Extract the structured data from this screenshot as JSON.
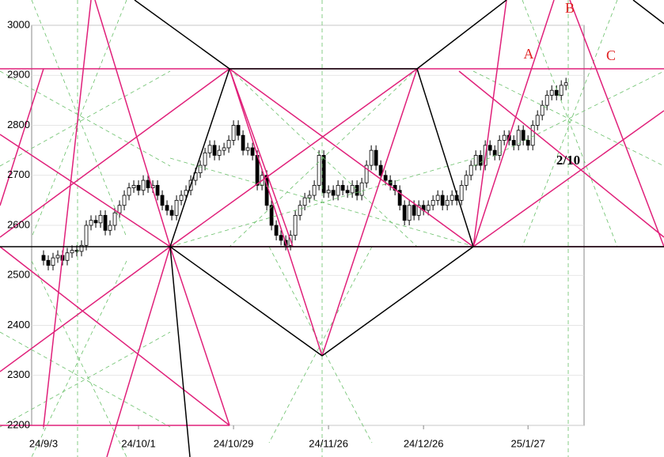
{
  "chart_data": {
    "type": "candlestick",
    "series": [
      {
        "name": "open",
        "values": [
          2540,
          2530,
          2520,
          2535,
          2540,
          2530,
          2545,
          2550,
          2548,
          2560,
          2600,
          2610,
          2605,
          2620,
          2590,
          2600,
          2625,
          2640,
          2660,
          2675,
          2680,
          2670,
          2690,
          2675,
          2680,
          2660,
          2640,
          2630,
          2620,
          2650,
          2660,
          2670,
          2690,
          2705,
          2720,
          2745,
          2760,
          2740,
          2750,
          2755,
          2770,
          2800,
          2780,
          2750,
          2755,
          2740,
          2680,
          2700,
          2640,
          2600,
          2580,
          2570,
          2560,
          2580,
          2620,
          2640,
          2655,
          2660,
          2680,
          2740,
          2665,
          2670,
          2660,
          2680,
          2670,
          2665,
          2680,
          2660,
          2685,
          2720,
          2750,
          2720,
          2700,
          2690,
          2680,
          2670,
          2640,
          2610,
          2640,
          2620,
          2640,
          2630,
          2640,
          2650,
          2660,
          2640,
          2650,
          2660,
          2650,
          2680,
          2700,
          2720,
          2740,
          2720,
          2760,
          2750,
          2740,
          2770,
          2780,
          2770,
          2760,
          2790,
          2770,
          2760,
          2800,
          2820,
          2840,
          2860,
          2870,
          2860,
          2880
        ]
      },
      {
        "name": "high",
        "values": [
          2550,
          2540,
          2545,
          2550,
          2550,
          2555,
          2560,
          2560,
          2570,
          2610,
          2620,
          2620,
          2630,
          2630,
          2610,
          2635,
          2650,
          2670,
          2685,
          2690,
          2690,
          2700,
          2700,
          2690,
          2690,
          2670,
          2650,
          2640,
          2660,
          2670,
          2680,
          2700,
          2715,
          2730,
          2755,
          2770,
          2770,
          2760,
          2765,
          2780,
          2810,
          2810,
          2790,
          2765,
          2765,
          2750,
          2710,
          2710,
          2650,
          2610,
          2590,
          2580,
          2590,
          2630,
          2650,
          2665,
          2670,
          2690,
          2750,
          2750,
          2680,
          2680,
          2690,
          2690,
          2680,
          2690,
          2690,
          2695,
          2730,
          2760,
          2760,
          2730,
          2710,
          2700,
          2690,
          2680,
          2650,
          2650,
          2650,
          2650,
          2650,
          2650,
          2660,
          2670,
          2670,
          2660,
          2670,
          2670,
          2690,
          2710,
          2730,
          2750,
          2750,
          2770,
          2770,
          2760,
          2780,
          2790,
          2790,
          2780,
          2800,
          2800,
          2780,
          2810,
          2830,
          2850,
          2870,
          2880,
          2880,
          2890,
          2895
        ]
      },
      {
        "name": "low",
        "values": [
          2520,
          2510,
          2510,
          2525,
          2520,
          2520,
          2535,
          2538,
          2538,
          2550,
          2590,
          2595,
          2595,
          2580,
          2580,
          2590,
          2615,
          2630,
          2650,
          2665,
          2660,
          2660,
          2665,
          2665,
          2650,
          2630,
          2620,
          2610,
          2610,
          2640,
          2650,
          2660,
          2680,
          2695,
          2710,
          2735,
          2730,
          2730,
          2740,
          2745,
          2760,
          2770,
          2740,
          2740,
          2730,
          2670,
          2670,
          2630,
          2590,
          2570,
          2560,
          2550,
          2550,
          2570,
          2610,
          2630,
          2645,
          2650,
          2670,
          2655,
          2655,
          2650,
          2650,
          2660,
          2655,
          2655,
          2650,
          2650,
          2675,
          2710,
          2710,
          2690,
          2680,
          2670,
          2660,
          2630,
          2600,
          2600,
          2610,
          2610,
          2620,
          2620,
          2630,
          2640,
          2630,
          2630,
          2640,
          2640,
          2640,
          2670,
          2690,
          2710,
          2710,
          2710,
          2740,
          2730,
          2730,
          2760,
          2760,
          2750,
          2750,
          2760,
          2750,
          2750,
          2790,
          2810,
          2830,
          2850,
          2850,
          2850,
          2870
        ]
      },
      {
        "name": "close",
        "values": [
          2530,
          2520,
          2535,
          2540,
          2530,
          2545,
          2550,
          2548,
          2560,
          2600,
          2610,
          2605,
          2620,
          2590,
          2600,
          2625,
          2640,
          2660,
          2675,
          2680,
          2670,
          2690,
          2675,
          2680,
          2660,
          2640,
          2630,
          2620,
          2650,
          2660,
          2670,
          2690,
          2705,
          2720,
          2745,
          2760,
          2740,
          2750,
          2755,
          2770,
          2800,
          2780,
          2750,
          2755,
          2740,
          2680,
          2700,
          2640,
          2600,
          2580,
          2570,
          2560,
          2580,
          2620,
          2640,
          2655,
          2660,
          2680,
          2740,
          2665,
          2670,
          2660,
          2680,
          2670,
          2665,
          2680,
          2660,
          2685,
          2720,
          2750,
          2720,
          2700,
          2690,
          2680,
          2670,
          2640,
          2610,
          2640,
          2620,
          2640,
          2630,
          2640,
          2650,
          2660,
          2640,
          2650,
          2660,
          2650,
          2680,
          2700,
          2720,
          2740,
          2720,
          2760,
          2750,
          2740,
          2770,
          2780,
          2770,
          2760,
          2790,
          2770,
          2760,
          2800,
          2820,
          2840,
          2860,
          2870,
          2860,
          2880,
          2885
        ]
      }
    ],
    "xlim": [
      -2.5,
      113.8
    ],
    "xticks": [
      {
        "value": 0,
        "label": "24/9/3"
      },
      {
        "value": 20,
        "label": "24/10/1"
      },
      {
        "value": 40,
        "label": "24/10/29"
      },
      {
        "value": 60,
        "label": "24/11/26"
      },
      {
        "value": 80,
        "label": "24/12/26"
      },
      {
        "value": 102,
        "label": "25/1/27"
      }
    ],
    "ylim": [
      2200,
      3000
    ],
    "yticks": [
      2200,
      2300,
      2400,
      2500,
      2600,
      2700,
      2800,
      2900,
      3000
    ],
    "grid": true,
    "annotations": [
      "A",
      "B",
      "C",
      "2/10"
    ]
  }
}
